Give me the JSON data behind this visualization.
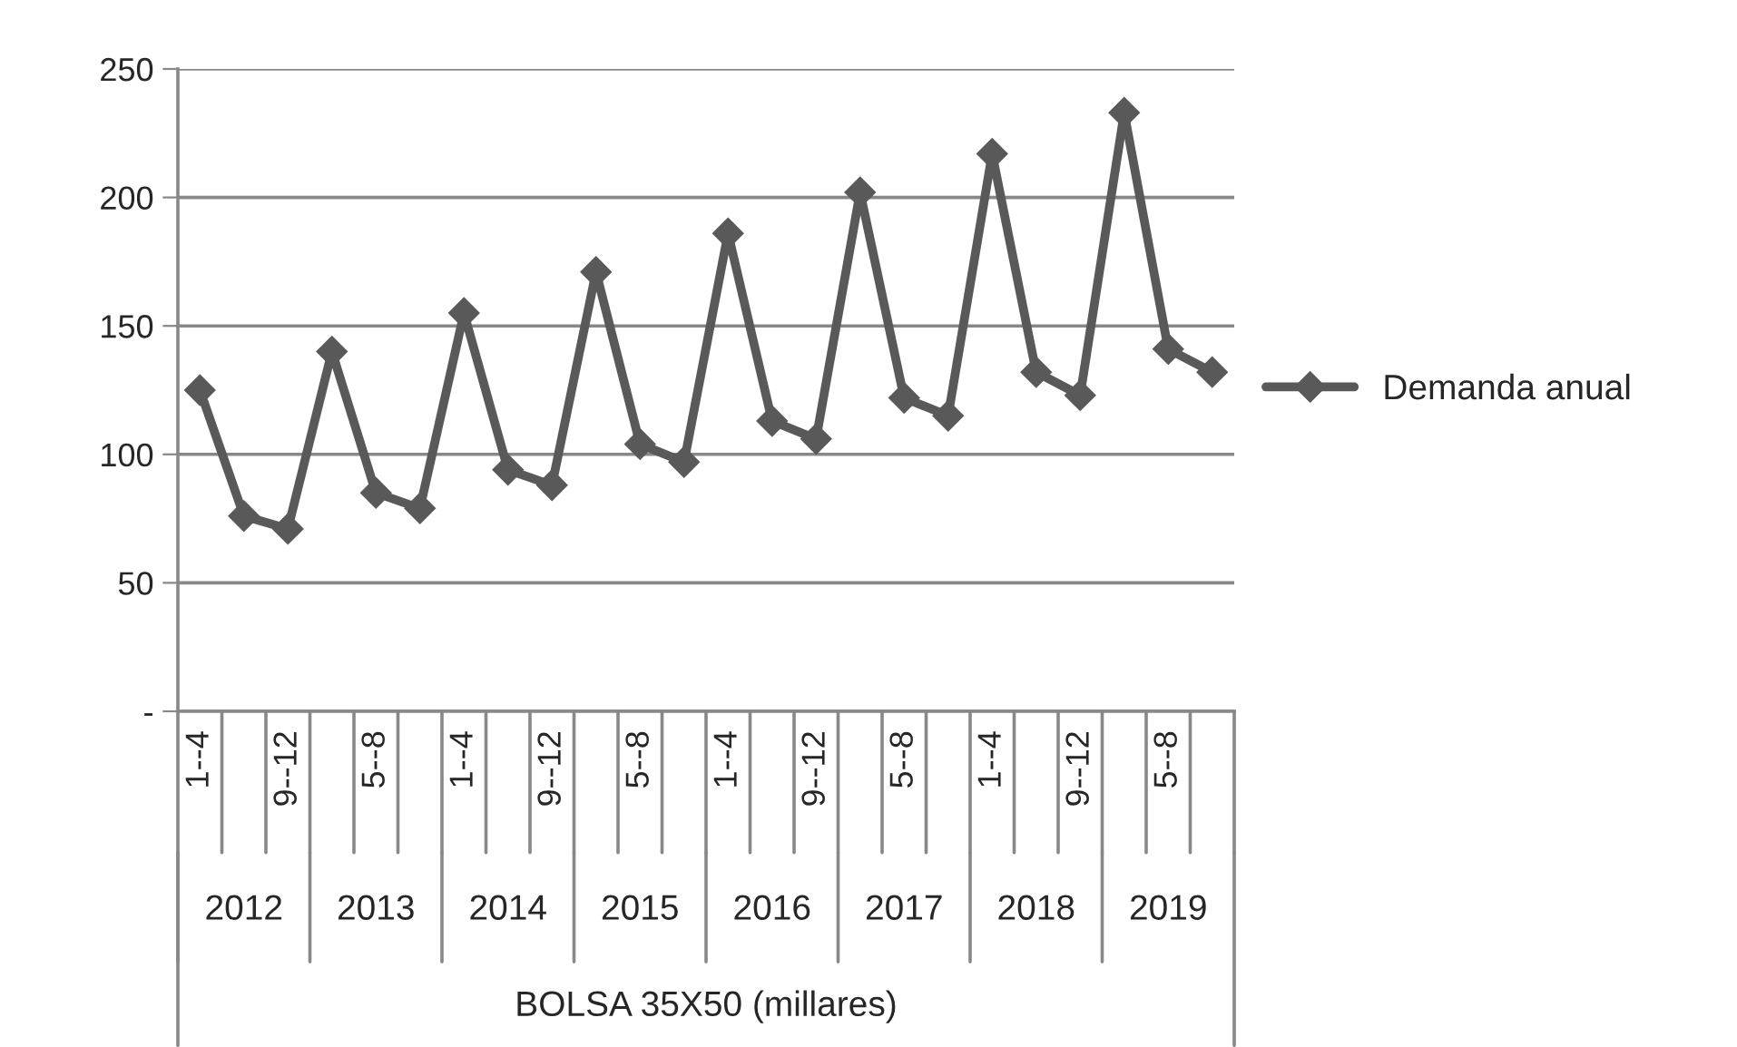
{
  "chart_data": {
    "type": "line",
    "categories": [
      "1--4",
      null,
      "9--12",
      null,
      "5--8",
      null,
      "1--4",
      null,
      "9--12",
      null,
      "5--8",
      null,
      "1--4",
      null,
      "9--12",
      null,
      "5--8",
      null,
      "1--4",
      null,
      "9--12",
      null,
      "5--8",
      null
    ],
    "series": [
      {
        "name": "Demanda anual",
        "color": "#595959",
        "values": [
          125,
          76,
          71,
          140,
          85,
          79,
          155,
          94,
          88,
          171,
          104,
          97,
          186,
          113,
          106,
          202,
          122,
          115,
          217,
          132,
          123,
          233,
          141,
          132
        ]
      }
    ],
    "annotations": [
      "2012",
      "2013",
      "2014",
      "2015",
      "2016",
      "2017",
      "2018",
      "2019",
      "BOLSA 35X50 (millares)"
    ],
    "ylim": [
      0,
      250
    ],
    "yticks": [
      {
        "value": 0,
        "label": "-"
      },
      50,
      100,
      150,
      200,
      250
    ],
    "grid": "y",
    "legend": "right",
    "marker": "diamond",
    "line_style": "solid"
  }
}
